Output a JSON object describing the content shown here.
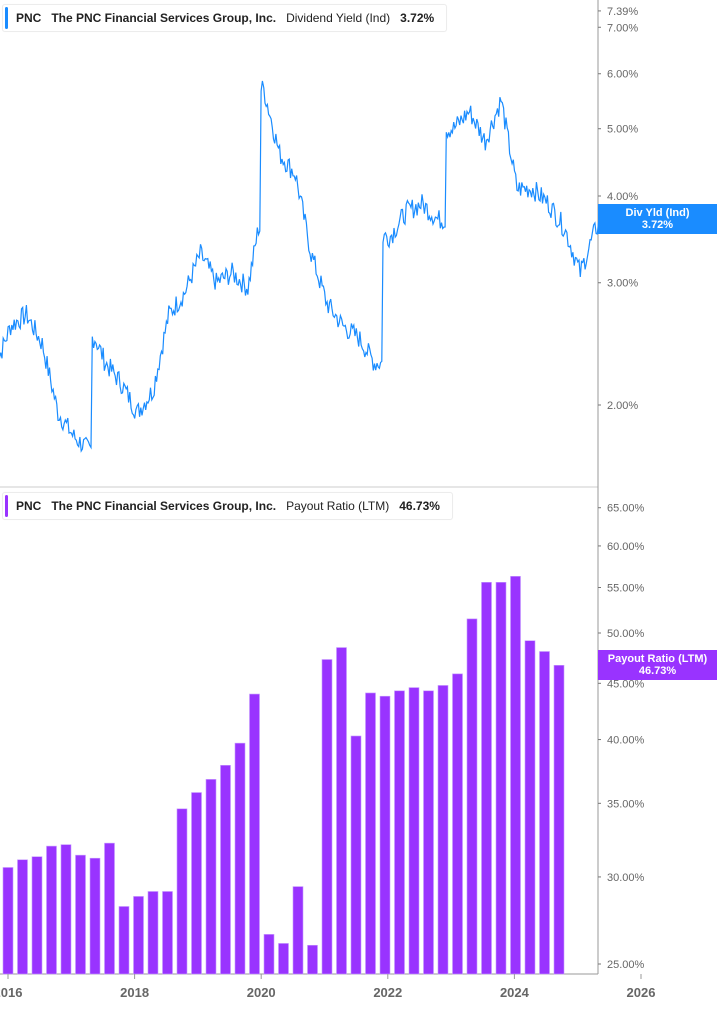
{
  "top_panel": {
    "legend": {
      "ticker": "PNC",
      "company": "The PNC Financial Services Group, Inc.",
      "metric": "Dividend Yield (Ind)",
      "value": "3.72%",
      "color": "#1a8cff"
    },
    "badge": {
      "label": "Div Yld (Ind)",
      "value": "3.72%",
      "color": "#1a8cff"
    },
    "y_ticks": [
      "7.39%",
      "7.00%",
      "6.00%",
      "5.00%",
      "4.00%",
      "3.00%",
      "2.00%"
    ]
  },
  "bottom_panel": {
    "legend": {
      "ticker": "PNC",
      "company": "The PNC Financial Services Group, Inc.",
      "metric": "Payout Ratio (LTM)",
      "value": "46.73%",
      "color": "#9933ff"
    },
    "badge": {
      "label": "Payout Ratio (LTM)",
      "value": "46.73%",
      "color": "#9933ff"
    },
    "y_ticks": [
      "65.00%",
      "60.00%",
      "55.00%",
      "50.00%",
      "45.00%",
      "40.00%",
      "35.00%",
      "30.00%",
      "25.00%"
    ]
  },
  "x_axis": {
    "ticks": [
      "2016",
      "2018",
      "2020",
      "2022",
      "2024",
      "2026"
    ]
  },
  "chart_data": [
    {
      "type": "line",
      "title": "PNC The PNC Financial Services Group, Inc. Dividend Yield (Ind)",
      "xlabel": "",
      "ylabel": "Dividend Yield (Ind)",
      "y_scale": "log",
      "ylim": [
        1.7,
        7.39
      ],
      "y_ticks": [
        2.0,
        3.0,
        4.0,
        5.0,
        6.0,
        7.0,
        7.39
      ],
      "x_ticks": [
        "2016",
        "2018",
        "2020",
        "2022",
        "2024",
        "2026"
      ],
      "last_value": 3.72,
      "grid": false,
      "series": [
        {
          "name": "Dividend Yield (Ind)",
          "x": [
            "2015-12",
            "2016-03",
            "2016-06",
            "2016-09",
            "2016-12",
            "2017-03",
            "2017-06",
            "2017-07",
            "2017-09",
            "2017-12",
            "2018-03",
            "2018-06",
            "2018-09",
            "2018-12",
            "2019-03",
            "2019-06",
            "2019-09",
            "2019-12",
            "2020-02",
            "2020-03",
            "2020-06",
            "2020-09",
            "2020-12",
            "2021-03",
            "2021-06",
            "2021-09",
            "2021-12",
            "2022-03",
            "2022-06",
            "2022-09",
            "2022-12",
            "2023-03",
            "2023-06",
            "2023-09",
            "2023-12",
            "2024-03",
            "2024-06",
            "2024-09",
            "2024-12",
            "2025-03",
            "2025-06",
            "2025-09"
          ],
          "values": [
            2.25,
            2.6,
            2.7,
            2.45,
            1.95,
            1.8,
            1.72,
            2.5,
            2.3,
            2.15,
            1.95,
            2.1,
            2.7,
            2.9,
            3.3,
            3.0,
            3.1,
            2.95,
            3.6,
            5.7,
            4.6,
            4.3,
            3.3,
            2.8,
            2.6,
            2.5,
            2.3,
            3.5,
            3.8,
            3.9,
            3.7,
            5.0,
            5.3,
            4.8,
            5.5,
            4.1,
            4.1,
            3.9,
            3.6,
            3.1,
            3.6,
            3.72
          ]
        }
      ]
    },
    {
      "type": "bar",
      "title": "PNC The PNC Financial Services Group, Inc. Payout Ratio (LTM)",
      "xlabel": "",
      "ylabel": "Payout Ratio (LTM)",
      "y_scale": "log",
      "ylim": [
        25.0,
        65.0
      ],
      "y_ticks": [
        25,
        30,
        35,
        40,
        45,
        50,
        55,
        60,
        65
      ],
      "x_ticks": [
        "2016",
        "2018",
        "2020",
        "2022",
        "2024",
        "2026"
      ],
      "last_value": 46.73,
      "grid": false,
      "categories": [
        "2016Q1",
        "2016Q2",
        "2016Q3",
        "2016Q4",
        "2017Q1",
        "2017Q2",
        "2017Q3",
        "2017Q4",
        "2018Q1",
        "2018Q2",
        "2018Q3",
        "2018Q4",
        "2019Q1",
        "2019Q2",
        "2019Q3",
        "2019Q4",
        "2020Q1",
        "2020Q2",
        "2020Q3",
        "2020Q4",
        "2021Q1",
        "2021Q2",
        "2021Q3",
        "2021Q4",
        "2022Q1",
        "2022Q2",
        "2022Q3",
        "2022Q4",
        "2023Q1",
        "2023Q2",
        "2023Q3",
        "2023Q4",
        "2024Q1",
        "2024Q2",
        "2024Q3",
        "2024Q4",
        "2025Q1",
        "2025Q2",
        "2025Q3"
      ],
      "values": [
        30.6,
        31.1,
        31.3,
        32.0,
        32.1,
        31.4,
        31.2,
        32.2,
        28.2,
        28.8,
        29.1,
        29.1,
        34.6,
        35.8,
        36.8,
        37.9,
        39.7,
        44.0,
        26.6,
        26.1,
        29.4,
        26.0,
        47.3,
        48.5,
        40.3,
        44.1,
        43.8,
        44.3,
        44.6,
        44.3,
        44.8,
        45.9,
        51.5,
        55.6,
        55.6,
        56.3,
        49.2,
        48.1,
        46.73
      ]
    }
  ]
}
